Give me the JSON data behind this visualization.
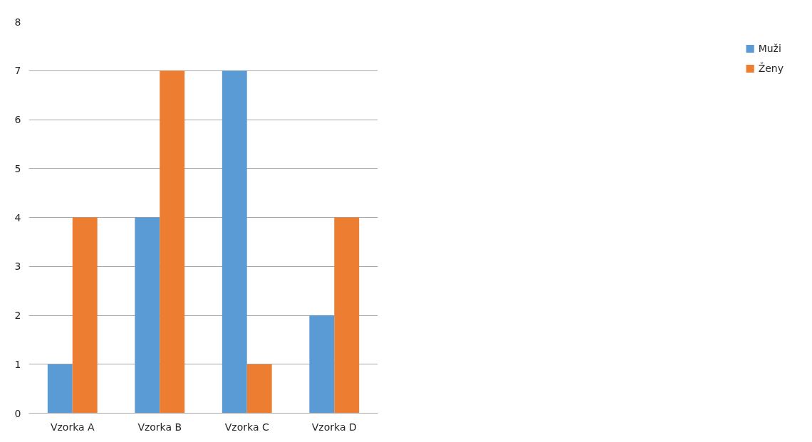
{
  "chart_data": {
    "type": "bar",
    "categories": [
      "Vzorka A",
      "Vzorka B",
      "Vzorka C",
      "Vzorka D"
    ],
    "series": [
      {
        "name": "Muži",
        "color": "#5b9bd5",
        "values": [
          1,
          4,
          7,
          2
        ]
      },
      {
        "name": "Ženy",
        "color": "#ed7d31",
        "values": [
          4,
          7,
          1,
          4
        ]
      }
    ],
    "ylim": [
      0,
      8
    ],
    "yticks": [
      0,
      1,
      2,
      3,
      4,
      5,
      6,
      7,
      8
    ],
    "grid": "y",
    "legend": "right"
  }
}
